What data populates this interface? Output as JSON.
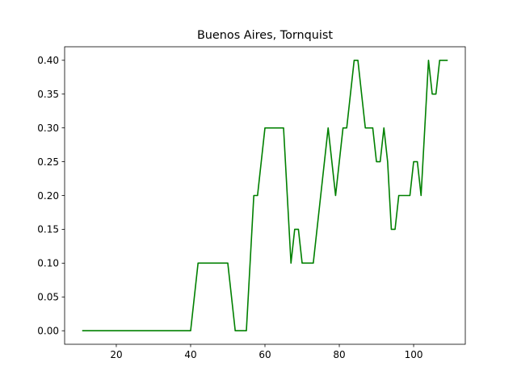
{
  "chart_data": {
    "type": "line",
    "title": "Buenos Aires, Tornquist",
    "xlabel": "",
    "ylabel": "",
    "xlim": [
      6.1,
      113.9
    ],
    "ylim": [
      -0.02,
      0.42
    ],
    "xticks": [
      20,
      40,
      60,
      80,
      100
    ],
    "yticks": [
      0.0,
      0.05,
      0.1,
      0.15,
      0.2,
      0.25,
      0.3,
      0.35,
      0.4
    ],
    "ytick_labels": [
      "0.00",
      "0.05",
      "0.10",
      "0.15",
      "0.20",
      "0.25",
      "0.30",
      "0.35",
      "0.40"
    ],
    "grid": false,
    "series": [
      {
        "color": "#008000",
        "x": [
          11,
          40,
          42,
          50,
          52,
          55,
          57,
          58,
          60,
          65,
          67,
          68,
          69,
          70,
          73,
          77,
          79,
          81,
          82,
          84,
          85,
          87,
          89,
          90,
          91,
          92,
          93,
          94,
          95,
          96,
          99,
          100,
          101,
          102,
          103,
          104,
          105,
          106,
          107,
          109
        ],
        "y": [
          0.0,
          0.0,
          0.1,
          0.1,
          0.0,
          0.0,
          0.2,
          0.2,
          0.3,
          0.3,
          0.1,
          0.15,
          0.15,
          0.1,
          0.1,
          0.3,
          0.2,
          0.3,
          0.3,
          0.4,
          0.4,
          0.3,
          0.3,
          0.25,
          0.25,
          0.3,
          0.25,
          0.15,
          0.15,
          0.2,
          0.2,
          0.25,
          0.25,
          0.2,
          0.3,
          0.4,
          0.35,
          0.35,
          0.4,
          0.4
        ]
      }
    ]
  }
}
